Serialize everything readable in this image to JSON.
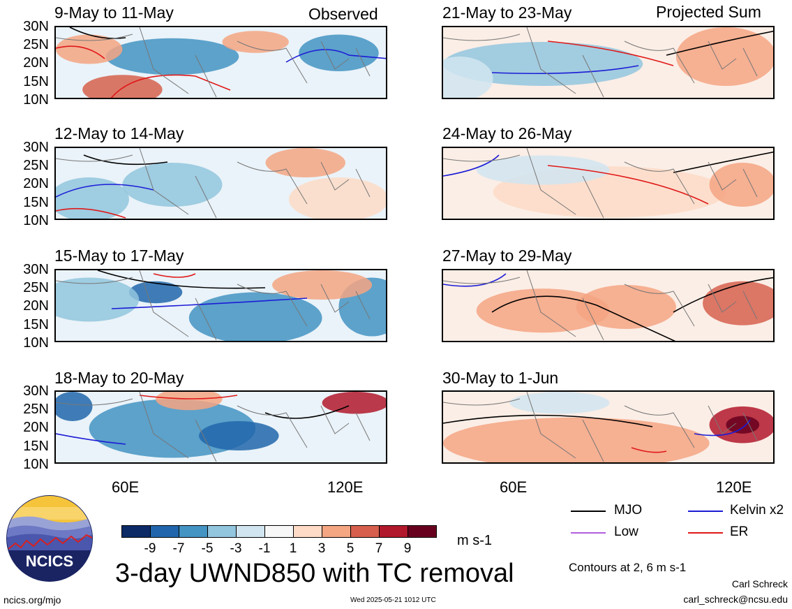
{
  "header": {
    "left_label": "Observed",
    "right_label": "Projected Sum"
  },
  "colors": {
    "mjo": "#000000",
    "kelvin": "#1c1cd6",
    "er": "#e01818",
    "low": "#b35ee0"
  },
  "chart_data": [
    {
      "type": "heatmap",
      "title": "9-May to 11-May",
      "column": "Observed",
      "xlim": [
        "40E",
        "130E"
      ],
      "ylim": [
        "10N",
        "30N"
      ]
    },
    {
      "type": "heatmap",
      "title": "12-May to 14-May",
      "column": "Observed",
      "xlim": [
        "40E",
        "130E"
      ],
      "ylim": [
        "10N",
        "30N"
      ]
    },
    {
      "type": "heatmap",
      "title": "15-May to 17-May",
      "column": "Observed",
      "xlim": [
        "40E",
        "130E"
      ],
      "ylim": [
        "10N",
        "30N"
      ]
    },
    {
      "type": "heatmap",
      "title": "18-May to 20-May",
      "column": "Observed",
      "xlim": [
        "40E",
        "130E"
      ],
      "ylim": [
        "10N",
        "30N"
      ]
    },
    {
      "type": "heatmap",
      "title": "21-May to 23-May",
      "column": "Projected Sum",
      "xlim": [
        "40E",
        "130E"
      ],
      "ylim": [
        "10N",
        "30N"
      ]
    },
    {
      "type": "heatmap",
      "title": "24-May to 26-May",
      "column": "Projected Sum",
      "xlim": [
        "40E",
        "130E"
      ],
      "ylim": [
        "10N",
        "30N"
      ]
    },
    {
      "type": "heatmap",
      "title": "27-May to 29-May",
      "column": "Projected Sum",
      "xlim": [
        "40E",
        "130E"
      ],
      "ylim": [
        "10N",
        "30N"
      ]
    },
    {
      "type": "heatmap",
      "title": "30-May to 1-Jun",
      "column": "Projected Sum",
      "xlim": [
        "40E",
        "130E"
      ],
      "ylim": [
        "10N",
        "30N"
      ]
    }
  ],
  "axes": {
    "y_ticks": [
      "30N",
      "25N",
      "20N",
      "15N",
      "10N"
    ],
    "x_ticks": [
      "60E",
      "120E"
    ]
  },
  "colorbar": {
    "colors": [
      "#0b2a66",
      "#2166ac",
      "#4393c3",
      "#92c5de",
      "#d1e5f0",
      "#f7f7f7",
      "#fddbc7",
      "#f4a582",
      "#d6604d",
      "#b2182b",
      "#67001f"
    ],
    "labels": [
      "-9",
      "-7",
      "-5",
      "-3",
      "-1",
      "1",
      "3",
      "5",
      "7",
      "9"
    ],
    "unit": "m s-1"
  },
  "legend": {
    "mjo": "MJO",
    "kelvin": "Kelvin x2",
    "low": "Low",
    "er": "ER",
    "contours_note": "Contours at 2, 6 m s-1"
  },
  "footer": {
    "main_title": "3-day UWND850 with TC removal",
    "logo_text": "NCICS",
    "url": "ncics.org/mjo",
    "timestamp": "Wed 2025-05-21 1012 UTC",
    "author": "Carl Schreck",
    "email": "carl_schreck@ncsu.edu"
  }
}
